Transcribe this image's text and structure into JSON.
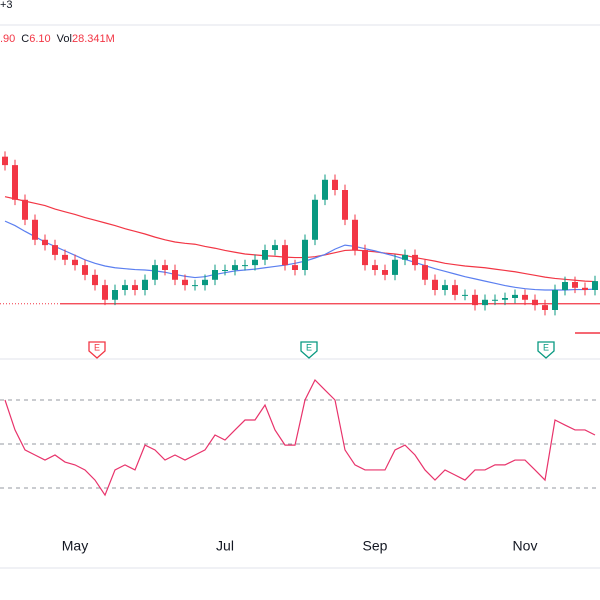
{
  "header": {
    "symbol_partial": "+3",
    "legend": [
      {
        "value": ".90"
      },
      {
        "label": "C",
        "value": "6.10"
      },
      {
        "label": "Vol",
        "value": "28.341M"
      }
    ]
  },
  "chart_data": {
    "type": "candlestick",
    "categories": [
      null,
      null,
      null,
      null,
      null,
      null,
      null,
      "May",
      null,
      null,
      null,
      null,
      null,
      null,
      null,
      null,
      null,
      null,
      null,
      null,
      null,
      null,
      "Jul",
      null,
      null,
      null,
      null,
      null,
      null,
      null,
      null,
      null,
      null,
      null,
      null,
      null,
      null,
      "Sep",
      null,
      null,
      null,
      null,
      null,
      null,
      null,
      null,
      null,
      null,
      null,
      null,
      null,
      null,
      "Nov",
      null,
      null,
      null,
      null,
      null,
      null,
      null
    ],
    "open": [
      8.9,
      8.71,
      7.93,
      7.48,
      7.03,
      6.91,
      6.69,
      6.58,
      6.46,
      6.24,
      6.01,
      5.68,
      5.9,
      6.01,
      5.9,
      6.13,
      6.46,
      6.35,
      6.13,
      6.01,
      6.01,
      6.13,
      6.35,
      6.35,
      6.46,
      6.46,
      6.58,
      6.8,
      6.91,
      6.46,
      6.35,
      7.03,
      7.93,
      8.38,
      8.15,
      7.48,
      6.8,
      6.46,
      6.35,
      6.24,
      6.58,
      6.69,
      6.46,
      6.13,
      5.9,
      6.01,
      5.79,
      5.79,
      5.56,
      5.68,
      5.68,
      5.72,
      5.79,
      5.68,
      5.56,
      5.45,
      5.9,
      6.08,
      5.95,
      5.9
    ],
    "high": [
      9.02,
      8.83,
      8.05,
      7.6,
      7.15,
      7.03,
      6.81,
      6.7,
      6.58,
      6.36,
      6.13,
      6.02,
      6.13,
      6.13,
      6.25,
      6.58,
      6.58,
      6.47,
      6.25,
      6.13,
      6.25,
      6.47,
      6.47,
      6.58,
      6.58,
      6.7,
      6.92,
      7.03,
      7.03,
      6.58,
      7.15,
      8.05,
      8.5,
      8.5,
      8.27,
      7.6,
      6.92,
      6.58,
      6.47,
      6.7,
      6.81,
      6.81,
      6.58,
      6.25,
      6.13,
      6.13,
      5.91,
      5.91,
      5.8,
      5.8,
      5.84,
      5.91,
      5.91,
      5.8,
      5.68,
      6.02,
      6.2,
      6.2,
      6.07,
      6.22
    ],
    "low": [
      8.59,
      7.81,
      7.36,
      6.91,
      6.79,
      6.57,
      6.46,
      6.34,
      6.12,
      5.89,
      5.56,
      5.56,
      5.78,
      5.78,
      5.78,
      6.01,
      6.23,
      6.01,
      5.89,
      5.89,
      5.89,
      6.01,
      6.23,
      6.23,
      6.34,
      6.34,
      6.46,
      6.68,
      6.34,
      6.23,
      6.23,
      6.91,
      7.81,
      8.03,
      7.36,
      6.68,
      6.34,
      6.23,
      6.12,
      6.12,
      6.46,
      6.34,
      6.01,
      5.78,
      5.78,
      5.67,
      5.67,
      5.44,
      5.44,
      5.56,
      5.56,
      5.6,
      5.56,
      5.44,
      5.33,
      5.33,
      5.78,
      5.83,
      5.78,
      5.78
    ],
    "close": [
      8.71,
      7.93,
      7.48,
      7.03,
      6.91,
      6.69,
      6.58,
      6.46,
      6.24,
      6.01,
      5.68,
      5.9,
      6.01,
      5.9,
      6.13,
      6.46,
      6.35,
      6.13,
      6.01,
      6.01,
      6.13,
      6.35,
      6.35,
      6.46,
      6.46,
      6.58,
      6.8,
      6.91,
      6.46,
      6.35,
      7.03,
      7.93,
      8.38,
      8.15,
      7.48,
      6.8,
      6.46,
      6.35,
      6.24,
      6.58,
      6.69,
      6.46,
      6.13,
      5.9,
      6.01,
      5.79,
      5.79,
      5.56,
      5.68,
      5.68,
      5.72,
      5.79,
      5.68,
      5.56,
      5.45,
      5.9,
      6.08,
      5.95,
      5.9,
      6.1
    ],
    "up_color": "#089981",
    "down_color": "#f23645",
    "ylim": [
      5.0,
      9.5
    ],
    "support_level": 5.59,
    "support_color": "#f23645",
    "moving_averages": [
      {
        "color": "#f23645",
        "values": [
          8.0,
          7.95,
          7.9,
          7.85,
          7.8,
          7.72,
          7.66,
          7.6,
          7.53,
          7.47,
          7.41,
          7.35,
          7.28,
          7.22,
          7.16,
          7.09,
          7.03,
          6.98,
          6.95,
          6.93,
          6.88,
          6.84,
          6.79,
          6.75,
          6.71,
          6.69,
          6.67,
          6.66,
          6.64,
          6.63,
          6.63,
          6.65,
          6.69,
          6.74,
          6.79,
          6.8,
          6.78,
          6.76,
          6.73,
          6.71,
          6.68,
          6.63,
          6.59,
          6.55,
          6.5,
          6.47,
          6.44,
          6.42,
          6.4,
          6.37,
          6.34,
          6.31,
          6.27,
          6.23,
          6.19,
          6.16,
          6.14,
          6.12,
          6.1,
          6.09
        ]
      },
      {
        "color": "#5b7ff0",
        "values": [
          7.45,
          7.35,
          7.22,
          7.1,
          6.98,
          6.88,
          6.78,
          6.68,
          6.58,
          6.5,
          6.44,
          6.4,
          6.38,
          6.36,
          6.35,
          6.33,
          6.3,
          6.25,
          6.21,
          6.18,
          6.2,
          6.25,
          6.29,
          6.33,
          6.35,
          6.37,
          6.4,
          6.43,
          6.46,
          6.5,
          6.55,
          6.62,
          6.7,
          6.82,
          6.91,
          6.88,
          6.83,
          6.78,
          6.72,
          6.66,
          6.59,
          6.52,
          6.45,
          6.38,
          6.32,
          6.26,
          6.2,
          6.15,
          6.1,
          6.05,
          6.0,
          5.96,
          5.93,
          5.91,
          5.9,
          5.9,
          5.9,
          5.91,
          5.91,
          5.92
        ]
      }
    ],
    "earnings": [
      {
        "label": "E",
        "color": "#f23645"
      },
      {
        "label": "E",
        "color": "#089981"
      },
      {
        "label": "E",
        "color": "#089981"
      }
    ],
    "rsi": {
      "color": "#e8336b",
      "ylim": [
        20,
        85
      ],
      "levels": [
        30,
        50,
        70
      ],
      "values": [
        70,
        56.4,
        47.3,
        45,
        42.7,
        45,
        41.8,
        40.5,
        38.2,
        33.6,
        26.8,
        38.2,
        40.5,
        38.2,
        49.5,
        47.3,
        42.7,
        45,
        42.7,
        45,
        47.3,
        54.1,
        51.8,
        56.4,
        60.9,
        60.9,
        67.7,
        56.4,
        49.5,
        49.5,
        70,
        79.1,
        74.5,
        70,
        47.3,
        40.5,
        38.2,
        38.2,
        38.2,
        47.3,
        49.5,
        45,
        38.2,
        33.6,
        38.2,
        35.9,
        33.6,
        38.2,
        38.2,
        40.5,
        40.5,
        42.7,
        42.7,
        38.2,
        33.6,
        60.9,
        58.6,
        56.4,
        56.4,
        54.1
      ]
    }
  }
}
